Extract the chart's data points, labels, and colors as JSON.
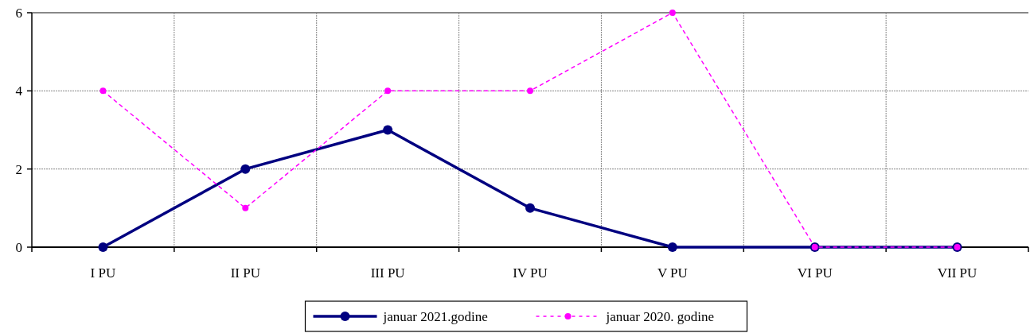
{
  "chart_data": {
    "type": "line",
    "categories": [
      "I PU",
      "II PU",
      "III PU",
      "IV PU",
      "V PU",
      "VI PU",
      "VII PU"
    ],
    "series": [
      {
        "name": "januar 2021.godine",
        "color": "#000080",
        "values": [
          0,
          2,
          3,
          1,
          0,
          0,
          0
        ],
        "line_style": "solid",
        "marker": "circle"
      },
      {
        "name": "januar 2020. godine",
        "color": "#ff00ff",
        "values": [
          4,
          1,
          4,
          4,
          6,
          0,
          0
        ],
        "line_style": "dashed",
        "marker": "circle"
      }
    ],
    "ylim": [
      0,
      6
    ],
    "yticks": [
      0,
      2,
      4,
      6
    ],
    "grid": true,
    "legend": "bottom"
  }
}
